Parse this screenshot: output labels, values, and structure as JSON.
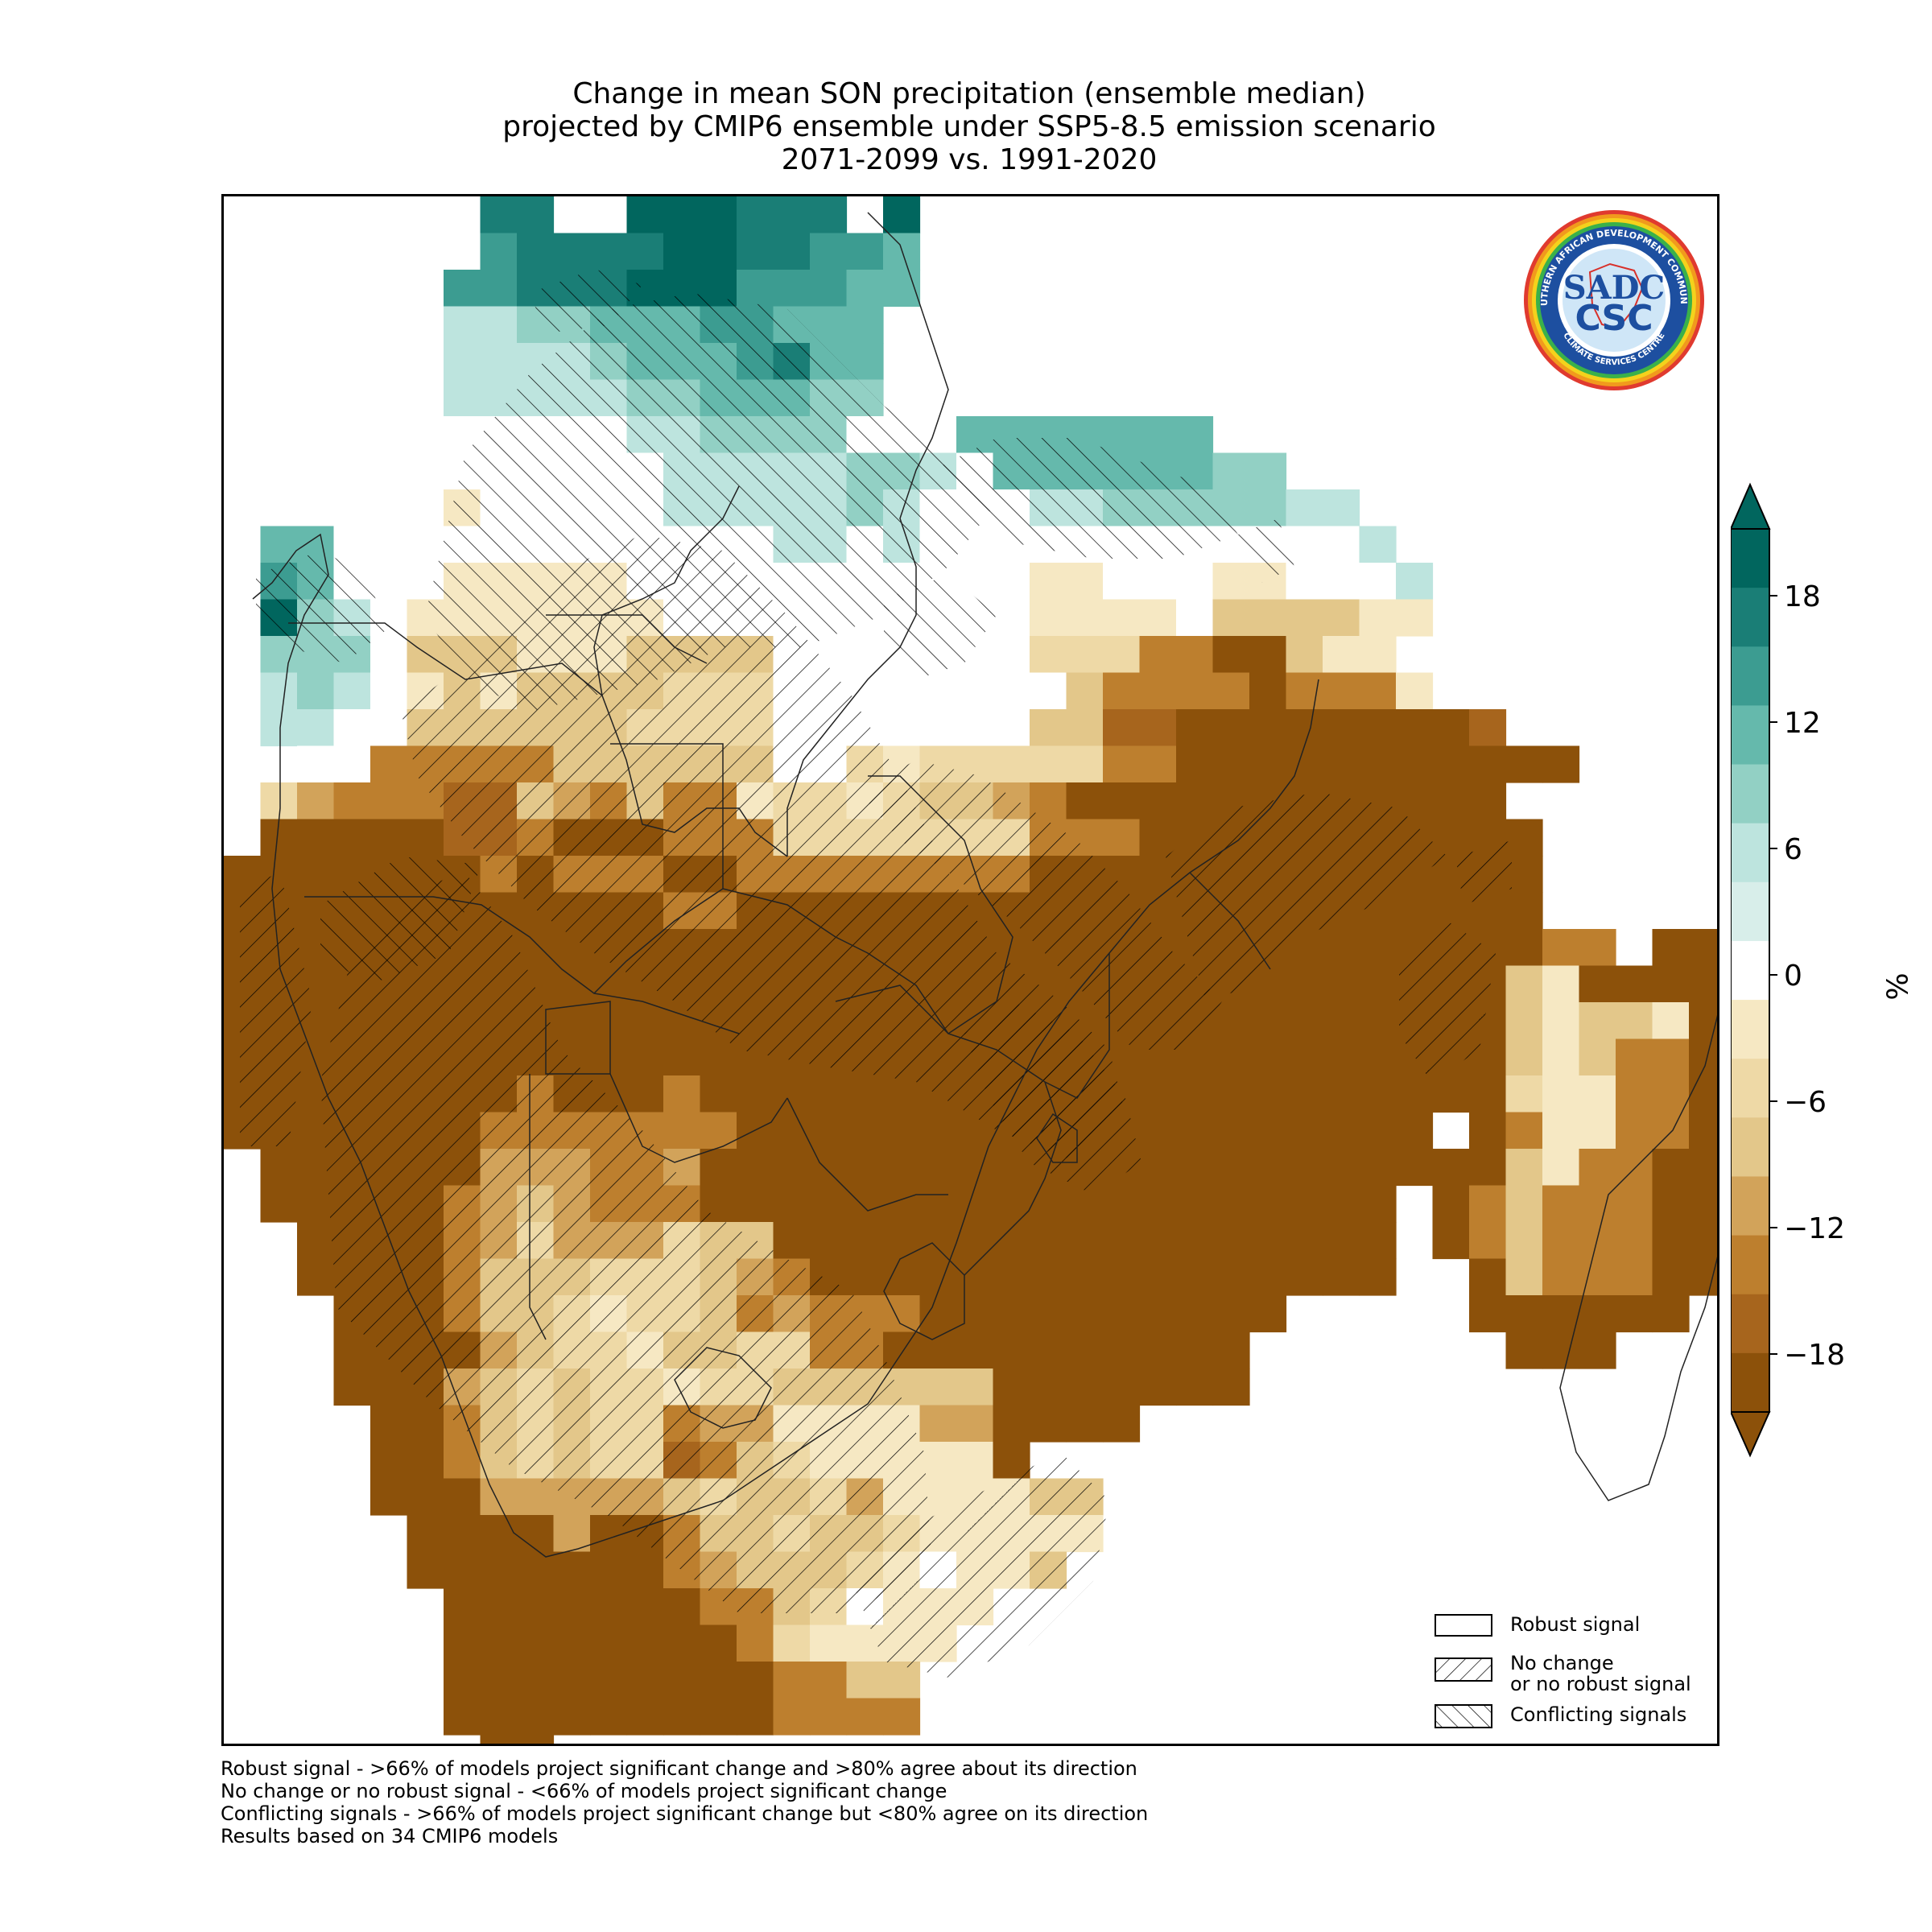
{
  "title": {
    "line1": "Change in mean SON precipitation (ensemble median)",
    "line2": "projected by CMIP6 ensemble under SSP5-8.5 emission scenario",
    "line3": "2071-2099 vs. 1991-2020"
  },
  "logo": {
    "outer_text": "SOUTHERN AFRICAN DEVELOPMENT COMMUNITY",
    "bottom_text": "CLIMATE SERVICES CENTRE",
    "center_top": "SADC",
    "center_bottom": "CSC"
  },
  "colorbar": {
    "unit": "%",
    "ticks": [
      "18",
      "12",
      "6",
      "0",
      "−6",
      "−12",
      "−18"
    ],
    "colors": [
      "#01665e",
      "#1a7e76",
      "#3c9c91",
      "#65b9ac",
      "#92d0c4",
      "#bde4de",
      "#d8eeea",
      "#ffffff",
      "#f6e8c3",
      "#eed9a6",
      "#e3c78a",
      "#d2a35a",
      "#bd7f2e",
      "#a7651d",
      "#8c510a"
    ]
  },
  "legend": {
    "robust": "Robust signal",
    "nochange_line1": "No change",
    "nochange_line2": "or no robust signal",
    "conflicting": "Conflicting signals"
  },
  "footnotes": {
    "line1": "Robust signal - >66% of models project significant change and >80% agree about its direction",
    "line2": "No change or no robust signal - <66% of models project significant change",
    "line3": "Conflicting signals - >66% of models project significant change but <80% agree on its direction",
    "line4": "Results based on 34 CMIP6 models"
  }
}
